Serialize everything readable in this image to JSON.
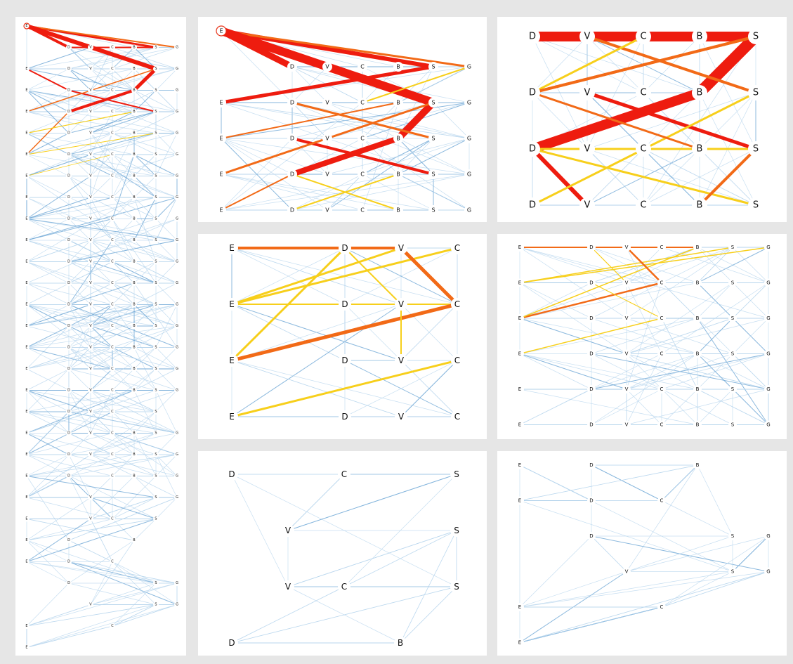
{
  "colors": {
    "background": "#e6e6e6",
    "panel": "#ffffff",
    "red": "#ee1c0f",
    "orange": "#f26a17",
    "yellow": "#f7cf1b",
    "blue": "#6fa8d6",
    "light_blue": "#b8d6ee",
    "green": "#8bc34a"
  },
  "panels": [
    {
      "name": "overview-panel",
      "rows": [
        [
          "E",
          "",
          "",
          "",
          "",
          "",
          ""
        ],
        [
          "",
          "D",
          "V",
          "C",
          "B",
          "S",
          "G"
        ],
        [
          "E",
          "D",
          "V",
          "C",
          "B",
          "S",
          "G"
        ],
        [
          "E",
          "D",
          "V",
          "C",
          "B",
          "S",
          "G"
        ],
        [
          "E",
          "D",
          "V",
          "C",
          "B",
          "S",
          "G"
        ],
        [
          "E",
          "D",
          "V",
          "C",
          "B",
          "S",
          "G"
        ],
        [
          "E",
          "D",
          "V",
          "C",
          "B",
          "S",
          "G"
        ],
        [
          "E",
          "D",
          "V",
          "C",
          "B",
          "S",
          "G"
        ],
        [
          "E",
          "D",
          "V",
          "C",
          "B",
          "S",
          "G"
        ],
        [
          "E",
          "D",
          "V",
          "C",
          "B",
          "S",
          "G"
        ],
        [
          "E",
          "D",
          "V",
          "C",
          "B",
          "S",
          "G"
        ],
        [
          "E",
          "D",
          "V",
          "C",
          "B",
          "S",
          "G"
        ],
        [
          "E",
          "D",
          "V",
          "C",
          "B",
          "S",
          "G"
        ],
        [
          "E",
          "D",
          "V",
          "C",
          "B",
          "S",
          "G"
        ],
        [
          "E",
          "D",
          "V",
          "C",
          "B",
          "S",
          "G"
        ],
        [
          "E",
          "D",
          "V",
          "C",
          "B",
          "S",
          "G"
        ],
        [
          "E",
          "D",
          "V",
          "C",
          "B",
          "S",
          "G"
        ],
        [
          "E",
          "D",
          "V",
          "C",
          "B",
          "S",
          "G"
        ],
        [
          "E",
          "D",
          "V",
          "C",
          "",
          "S",
          ""
        ],
        [
          "E",
          "D",
          "V",
          "C",
          "B",
          "S",
          "G"
        ],
        [
          "E",
          "D",
          "V",
          "C",
          "B",
          "S",
          "G"
        ],
        [
          "E",
          "D",
          "",
          "C",
          "B",
          "S",
          "G"
        ],
        [
          "E",
          "",
          "V",
          "",
          "",
          "S",
          "G"
        ],
        [
          "E",
          "",
          "V",
          "C",
          "",
          "S",
          ""
        ],
        [
          "E",
          "D",
          "",
          "",
          "B",
          "",
          ""
        ],
        [
          "E",
          "D",
          "",
          "C",
          "",
          "",
          ""
        ],
        [
          "",
          "D",
          "",
          "",
          "",
          "S",
          "G"
        ],
        [
          "",
          "",
          "V",
          "",
          "",
          "S",
          "G"
        ],
        [
          "E",
          "",
          "",
          "C",
          "",
          "",
          ""
        ],
        [
          "E",
          "",
          "",
          "",
          "",
          "",
          ""
        ]
      ]
    },
    {
      "name": "zoom-top-panel",
      "rows": [
        [
          "E",
          "",
          "",
          "",
          "",
          "",
          ""
        ],
        [
          "",
          "D",
          "V",
          "C",
          "B",
          "S",
          "G"
        ],
        [
          "E",
          "D",
          "V",
          "C",
          "B",
          "S",
          "G"
        ],
        [
          "E",
          "D",
          "V",
          "C",
          "B",
          "S",
          "G"
        ],
        [
          "E",
          "D",
          "V",
          "C",
          "B",
          "S",
          "G"
        ],
        [
          "E",
          "D",
          "V",
          "C",
          "B",
          "S",
          "G"
        ]
      ]
    },
    {
      "name": "zoom-closeup-panel",
      "rows": [
        [
          "D",
          "V",
          "C",
          "B",
          "S"
        ],
        [
          "D",
          "V",
          "C",
          "B",
          "S"
        ],
        [
          "D",
          "V",
          "C",
          "B",
          "S"
        ],
        [
          "D",
          "V",
          "C",
          "B",
          "S"
        ]
      ]
    },
    {
      "name": "zoom-mid-left-panel",
      "rows": [
        [
          "E",
          "D",
          "V",
          "C"
        ],
        [
          "E",
          "D",
          "V",
          "C"
        ],
        [
          "E",
          "D",
          "V",
          "C"
        ],
        [
          "E",
          "D",
          "V",
          "C"
        ]
      ]
    },
    {
      "name": "zoom-mid-right-panel",
      "rows": [
        [
          "E",
          "D",
          "V",
          "C",
          "B",
          "S",
          "G"
        ],
        [
          "E",
          "D",
          "V",
          "C",
          "B",
          "S",
          "G"
        ],
        [
          "E",
          "D",
          "V",
          "C",
          "B",
          "S",
          "G"
        ],
        [
          "E",
          "D",
          "V",
          "C",
          "B",
          "S",
          "G"
        ],
        [
          "E",
          "D",
          "V",
          "C",
          "B",
          "S",
          "G"
        ],
        [
          "E",
          "D",
          "V",
          "C",
          "B",
          "S",
          "G"
        ]
      ]
    },
    {
      "name": "zoom-bottom-left-panel",
      "rows": [
        [
          "D",
          "",
          "C",
          "",
          "S"
        ],
        [
          "",
          "V",
          "",
          "",
          "S"
        ],
        [
          "",
          "V",
          "C",
          "",
          "S"
        ],
        [
          "D",
          "",
          "",
          "B",
          ""
        ]
      ]
    },
    {
      "name": "zoom-bottom-right-panel",
      "rows": [
        [
          "E",
          "D",
          "",
          "",
          "B",
          "",
          ""
        ],
        [
          "E",
          "D",
          "",
          "C",
          "",
          "",
          ""
        ],
        [
          "",
          "D",
          "",
          "",
          "",
          "S",
          "G"
        ],
        [
          "",
          "",
          "V",
          "",
          "",
          "S",
          "G"
        ],
        [
          "E",
          "",
          "",
          "C",
          "",
          "",
          ""
        ],
        [
          "E",
          "",
          "",
          "",
          "",
          "",
          ""
        ]
      ]
    }
  ]
}
